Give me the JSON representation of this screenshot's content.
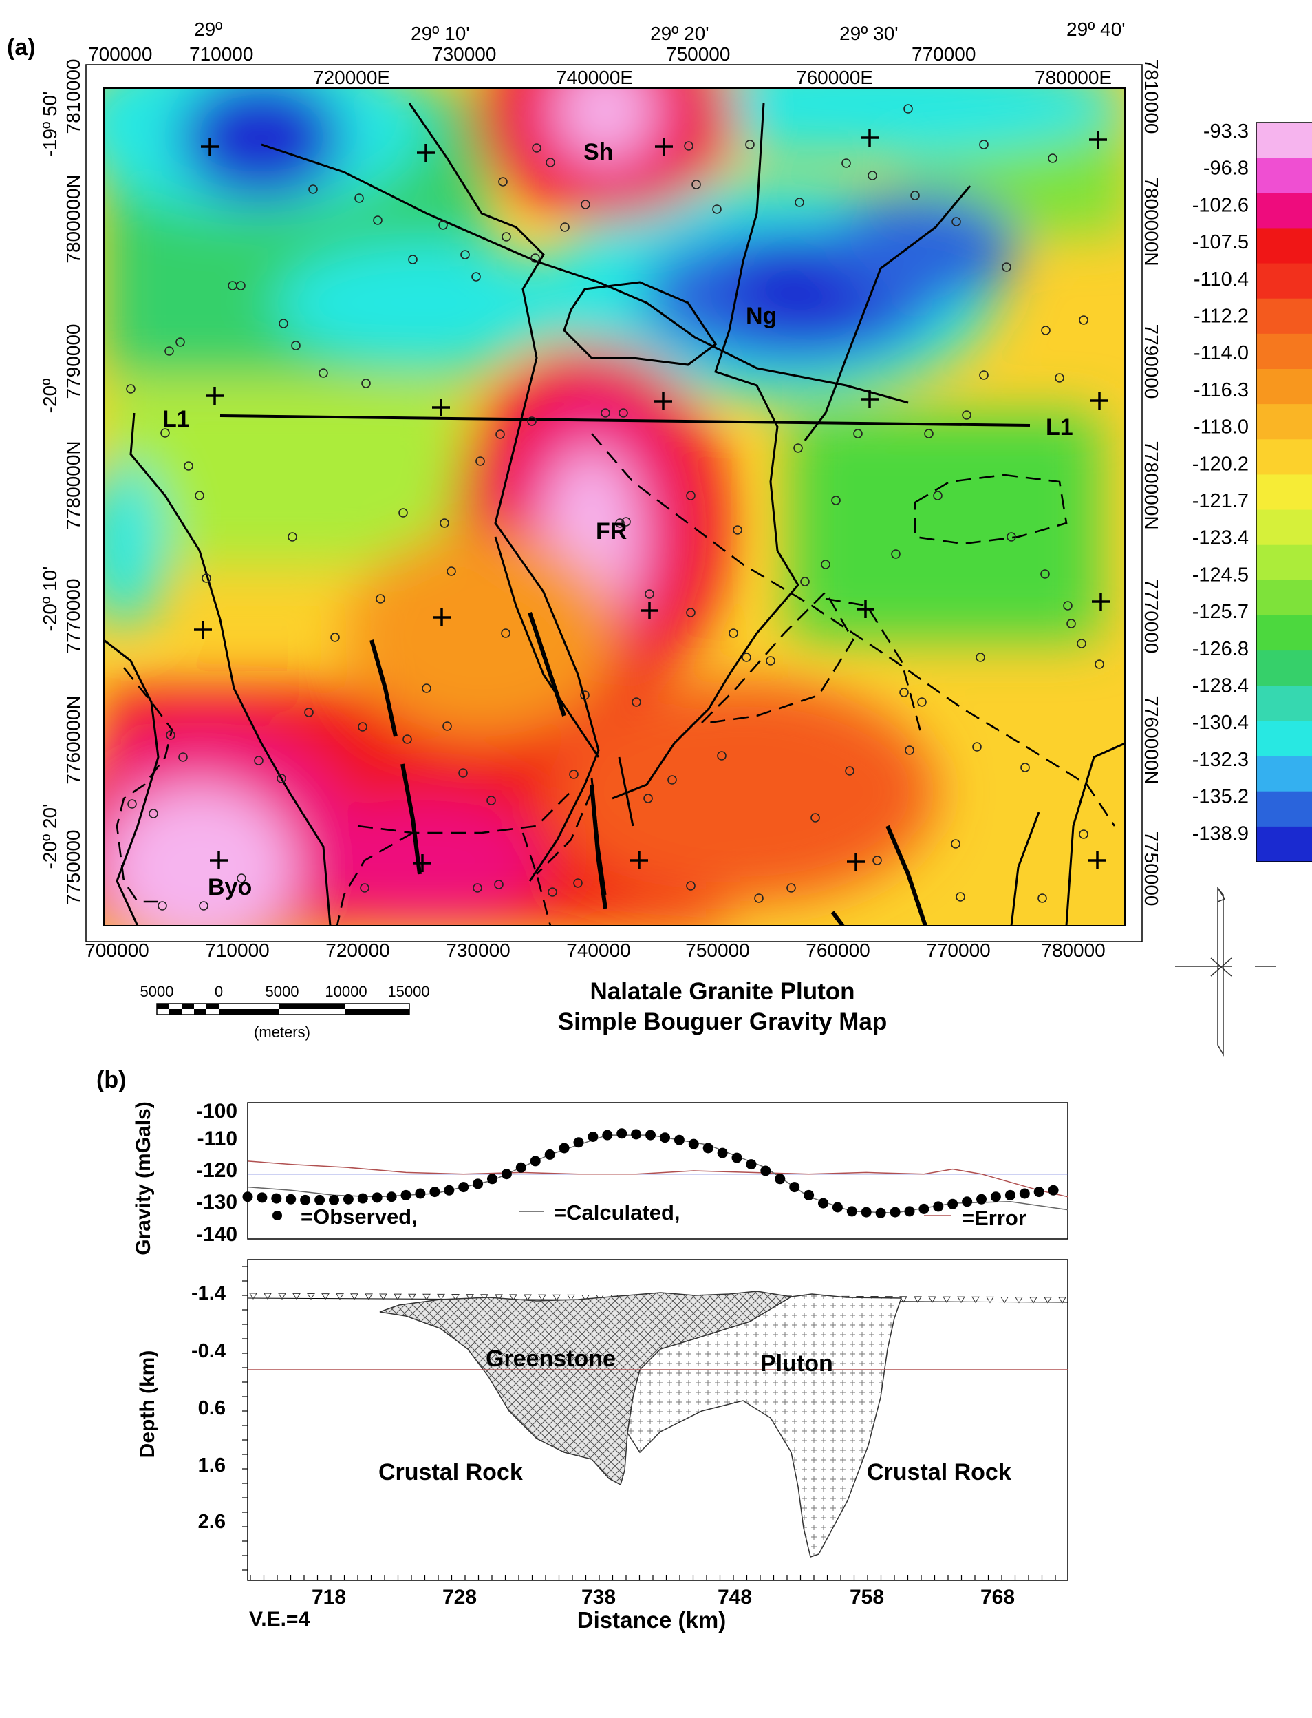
{
  "panel_a": {
    "panel_label": "(a)",
    "title_line1": "Nalatale Granite Pluton",
    "title_line2": "Simple Bouguer Gravity Map",
    "utm_top_outer": [
      "700000",
      "710000",
      "730000",
      "750000",
      "770000"
    ],
    "utm_top_inner": [
      "720000E",
      "740000E",
      "760000E",
      "780000E"
    ],
    "lon_top": [
      "29º",
      "29º 10'",
      "29º 20'",
      "29º 30'",
      "29º 40'"
    ],
    "utm_bottom": [
      "700000",
      "710000",
      "720000",
      "730000",
      "740000",
      "750000",
      "760000",
      "770000",
      "780000"
    ],
    "lat_left": [
      "-19º 50'",
      "-20º",
      "-20º 10'",
      "-20º 20'"
    ],
    "northing_left": [
      "7810000",
      "7800000N",
      "7790000",
      "7780000N",
      "7770000",
      "7760000N",
      "7750000"
    ],
    "northing_right": [
      "7810000",
      "7800000N",
      "7790000",
      "7780000N",
      "7770000",
      "7760000N",
      "7750000"
    ],
    "labels": {
      "sh": "Sh",
      "ng": "Ng",
      "fr": "FR",
      "byo": "Byo",
      "l1_left": "L1",
      "l1_right": "L1"
    },
    "scale_bar": {
      "ticks": [
        "5000",
        "0",
        "5000",
        "10000",
        "15000"
      ],
      "unit": "(meters)"
    },
    "colorbar": {
      "values": [
        "-93.3",
        "-96.8",
        "-102.6",
        "-107.5",
        "-110.4",
        "-112.2",
        "-114.0",
        "-116.3",
        "-118.0",
        "-120.2",
        "-121.7",
        "-123.4",
        "-124.5",
        "-125.7",
        "-126.8",
        "-128.4",
        "-130.4",
        "-132.3",
        "-135.2",
        "-138.9"
      ],
      "colors": [
        "#f6b4ee",
        "#ef4fd2",
        "#ee0c7d",
        "#f01616",
        "#f2301c",
        "#f45a1e",
        "#f6781e",
        "#f8971e",
        "#fab525",
        "#fcd12c",
        "#f6ec36",
        "#d6f03a",
        "#acec3a",
        "#7ee23a",
        "#4cd83e",
        "#36d06a",
        "#36d8b0",
        "#28e8e2",
        "#34b0f0",
        "#2a64dc",
        "#1a2ad0"
      ]
    },
    "gravity_anomalies": [
      {
        "label": "Sh",
        "x_e": 741000,
        "y_n": 7805000,
        "value": -93.3
      },
      {
        "label": "FR",
        "x_e": 739000,
        "y_n": 7775500,
        "value": -93.3
      },
      {
        "label": "Byo",
        "x_e": 709000,
        "y_n": 7752500,
        "value": -96.8
      },
      {
        "label": "Ng",
        "x_e": 757500,
        "y_n": 7794500,
        "value": -138.9
      }
    ]
  },
  "panel_b": {
    "panel_label": "(b)",
    "gravity_ylabel": "Gravity (mGals)",
    "gravity_ticks": [
      "-100",
      "-110",
      "-120",
      "-130",
      "-140"
    ],
    "legend": {
      "observed": "=Observed,",
      "calculated": "=Calculated,",
      "error": "=Error"
    },
    "depth_ylabel": "Depth (km)",
    "depth_ticks": [
      "-1.4",
      "-0.4",
      "0.6",
      "1.6",
      "2.6"
    ],
    "x_ticks": [
      "718",
      "728",
      "738",
      "748",
      "758",
      "768"
    ],
    "xlabel": "Distance (km)",
    "ve": "V.E.=4",
    "units": {
      "greenstone": "Greenstone",
      "pluton": "Pluton",
      "crustal_left": "Crustal Rock",
      "crustal_right": "Crustal Rock"
    }
  },
  "chart_data": {
    "type": "scatter",
    "xlabel": "",
    "ylabel": "Gravity (mGals)",
    "xlim": [
      713,
      770
    ],
    "ylim": [
      -140,
      -98
    ],
    "series": [
      {
        "name": "Observed",
        "x": [
          713,
          715,
          717,
          719,
          721,
          723,
          725,
          727,
          729,
          731,
          733,
          735,
          737,
          739,
          741,
          743,
          745,
          747,
          749,
          751,
          753,
          755,
          757,
          759,
          761,
          763,
          765,
          767,
          769
        ],
        "y": [
          -127,
          -127.5,
          -128,
          -128,
          -127.5,
          -127,
          -126,
          -125,
          -123,
          -120,
          -116,
          -112,
          -108.5,
          -107.5,
          -108,
          -109.5,
          -112,
          -115,
          -119,
          -124,
          -129,
          -131.5,
          -132,
          -131.5,
          -130,
          -128.5,
          -127,
          -126,
          -125
        ]
      },
      {
        "name": "Calculated",
        "x": [
          713,
          716,
          719,
          722,
          726,
          730,
          734,
          738,
          741,
          745,
          749,
          752,
          755,
          758,
          762,
          766,
          770
        ],
        "y": [
          -124,
          -125,
          -126.5,
          -127,
          -126,
          -122,
          -114,
          -108,
          -108,
          -111,
          -118,
          -127,
          -131.5,
          -132,
          -129,
          -128.5,
          -131
        ]
      },
      {
        "name": "Error",
        "x": [
          713,
          716,
          720,
          724,
          728,
          732,
          736,
          740,
          744,
          748,
          752,
          756,
          760,
          762,
          764,
          768,
          770
        ],
        "y": [
          -116,
          -117,
          -118,
          -119.5,
          -120,
          -119.5,
          -120,
          -120,
          -119,
          -119.5,
          -120,
          -119.5,
          -120,
          -118.5,
          -120,
          -125,
          -127
        ]
      },
      {
        "name": "Reference",
        "x": [
          713,
          770
        ],
        "y": [
          -120,
          -120
        ]
      }
    ]
  }
}
